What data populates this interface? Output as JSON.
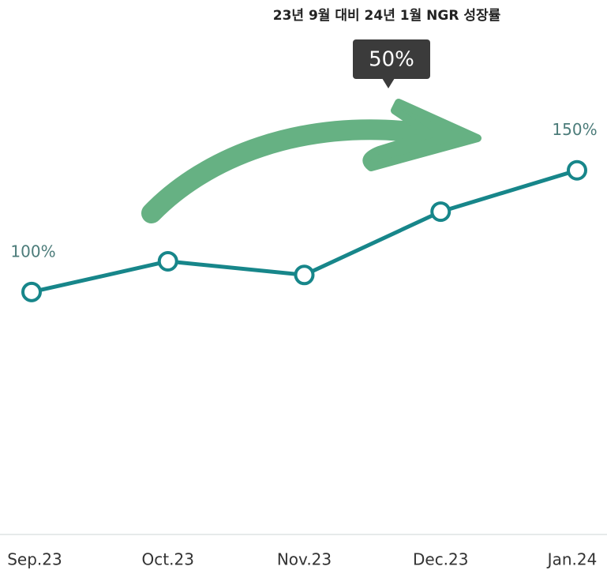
{
  "chart_data": {
    "type": "line",
    "title": "23년 9월 대비 24년 1월 NGR 성장률",
    "annotation": "50%",
    "categories": [
      "Sep.23",
      "Oct.23",
      "Nov.23",
      "Dec.23",
      "Jan.24"
    ],
    "values": [
      100,
      112.6,
      107,
      133,
      150
    ],
    "value_labels": [
      "100%",
      null,
      null,
      null,
      "150%"
    ],
    "color": "#17868a",
    "ylim": [
      0,
      220
    ]
  }
}
